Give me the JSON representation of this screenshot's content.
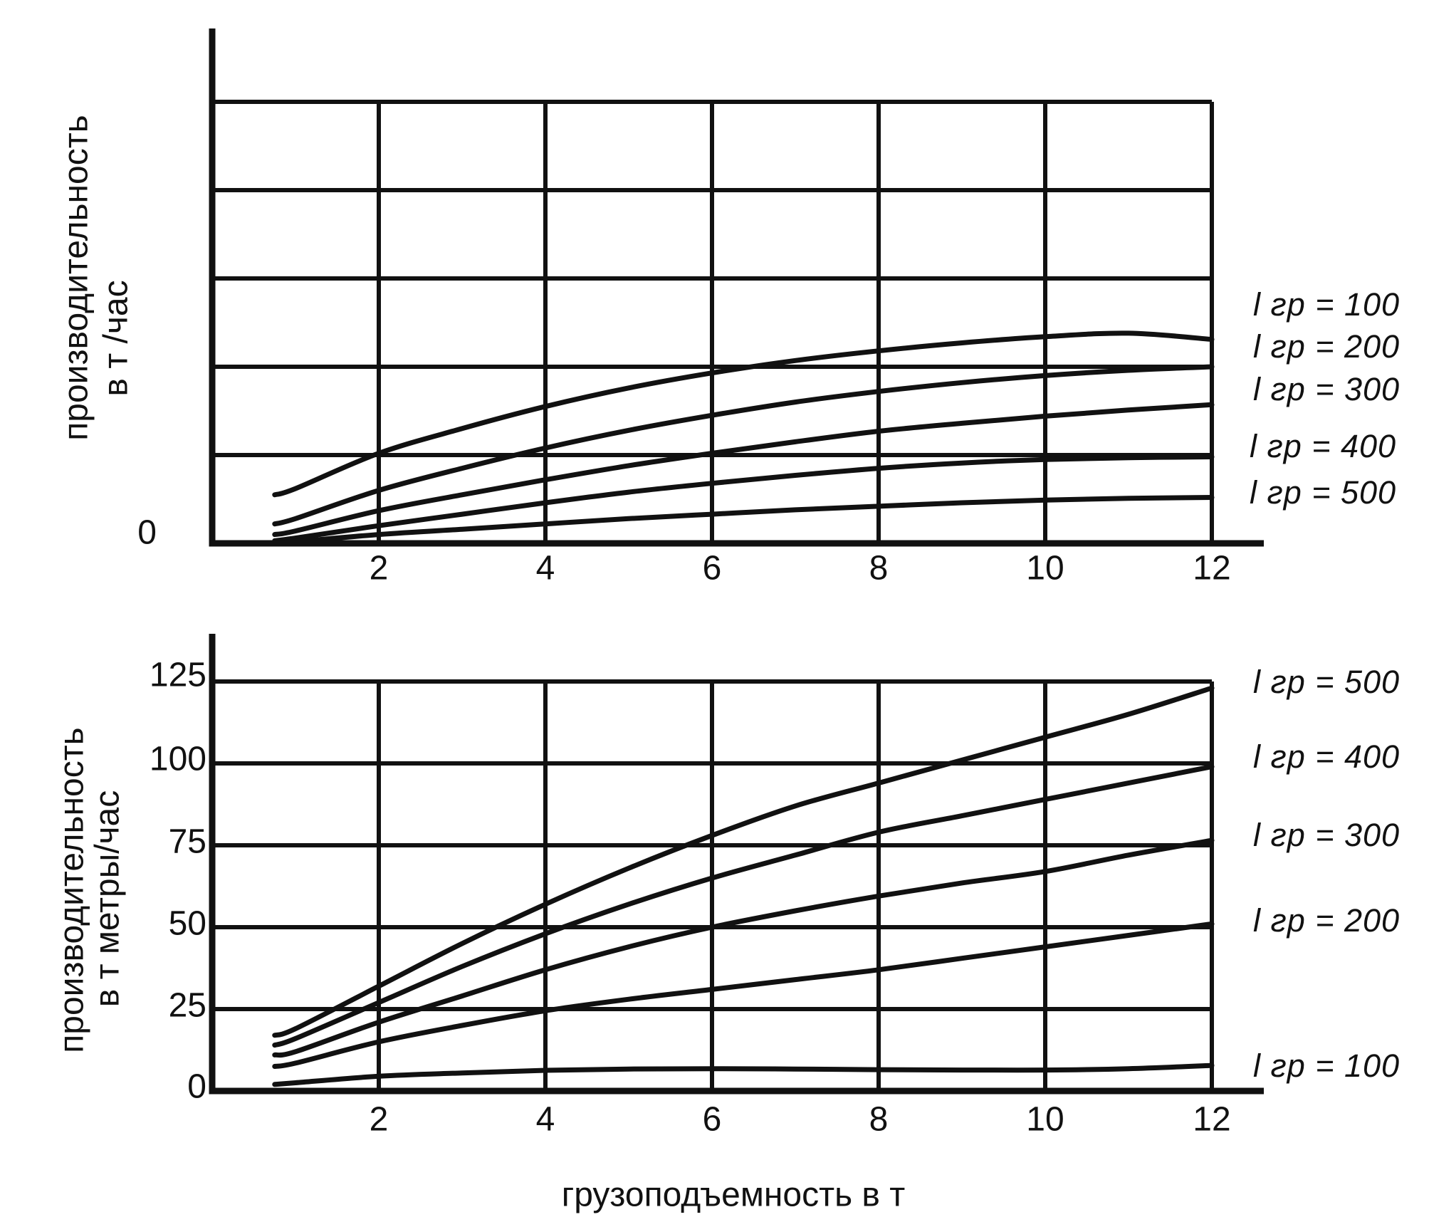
{
  "colors": {
    "ink": "#111111",
    "background": "#ffffff"
  },
  "xaxis_title": "грузоподъемность в т",
  "chart_data": [
    {
      "type": "line",
      "title": "",
      "position": "top",
      "ylabel_line1": "производительность",
      "ylabel_line2": "в т /час",
      "xlabel": "грузоподъемность в т",
      "x_tick_labels": [
        "2",
        "4",
        "6",
        "8",
        "10",
        "12"
      ],
      "y_tick_labels": [
        "0"
      ],
      "xlim": [
        0,
        12
      ],
      "ylim": [
        0,
        5
      ],
      "grid": true,
      "x_gridlines": [
        2,
        4,
        6,
        8,
        10,
        12
      ],
      "y_gridlines": [
        1,
        2,
        3,
        4,
        5
      ],
      "y_units_note": "horizontal gridlines unlabeled; only 0 labeled; values in grid units",
      "legend_position": "right",
      "legend": [
        "l гр = 100",
        "l гр = 200",
        "l гр = 300",
        "l гр = 400",
        "l гр = 500"
      ],
      "x": [
        0.75,
        1,
        2,
        3,
        4,
        5,
        6,
        7,
        8,
        9,
        10,
        11,
        12
      ],
      "series": [
        {
          "name": "l гр = 100",
          "y": [
            0.55,
            0.62,
            1.02,
            1.3,
            1.55,
            1.76,
            1.93,
            2.07,
            2.18,
            2.27,
            2.34,
            2.38,
            2.31
          ]
        },
        {
          "name": "l гр = 200",
          "y": [
            0.22,
            0.28,
            0.6,
            0.85,
            1.08,
            1.28,
            1.45,
            1.6,
            1.72,
            1.82,
            1.9,
            1.96,
            2.0
          ]
        },
        {
          "name": "l гр = 300",
          "y": [
            0.1,
            0.14,
            0.37,
            0.55,
            0.72,
            0.88,
            1.02,
            1.15,
            1.27,
            1.36,
            1.44,
            1.51,
            1.57
          ]
        },
        {
          "name": "l гр = 400",
          "y": [
            0.03,
            0.06,
            0.2,
            0.33,
            0.46,
            0.58,
            0.68,
            0.77,
            0.85,
            0.91,
            0.95,
            0.97,
            0.98
          ]
        },
        {
          "name": "l гр = 500",
          "y": [
            0.01,
            0.02,
            0.1,
            0.16,
            0.22,
            0.28,
            0.33,
            0.38,
            0.42,
            0.46,
            0.49,
            0.51,
            0.52
          ]
        }
      ]
    },
    {
      "type": "line",
      "title": "",
      "position": "bottom",
      "ylabel_line1": "производительность",
      "ylabel_line2": "в т метры/час",
      "xlabel": "грузоподъемность в т",
      "x_tick_labels": [
        "2",
        "4",
        "6",
        "8",
        "10",
        "12"
      ],
      "y_tick_labels": [
        "0",
        "25",
        "50",
        "75",
        "100",
        "125"
      ],
      "xlim": [
        0,
        12
      ],
      "ylim": [
        0,
        125
      ],
      "grid": true,
      "x_gridlines": [
        2,
        4,
        6,
        8,
        10,
        12
      ],
      "y_gridlines": [
        25,
        50,
        75,
        100,
        125
      ],
      "legend_position": "right",
      "legend": [
        "l гр = 500",
        "l гр = 400",
        "l гр = 300",
        "l гр = 200",
        "l гр = 100"
      ],
      "x": [
        0.75,
        1,
        2,
        3,
        4,
        5,
        6,
        7,
        8,
        9,
        10,
        11,
        12
      ],
      "series": [
        {
          "name": "l гр = 500",
          "y": [
            17,
            19,
            32,
            45,
            57,
            68,
            78,
            87,
            94,
            101,
            108,
            115,
            123
          ]
        },
        {
          "name": "l гр = 400",
          "y": [
            14,
            16,
            27,
            38,
            48,
            57,
            65,
            72,
            79,
            84,
            89,
            94,
            99
          ]
        },
        {
          "name": "l гр = 300",
          "y": [
            11,
            12,
            21,
            29,
            37,
            44,
            50,
            55,
            59.5,
            63.5,
            67,
            72,
            76.5
          ]
        },
        {
          "name": "l гр = 200",
          "y": [
            7.5,
            8.5,
            15,
            20,
            24.5,
            28,
            31,
            34,
            37,
            40.5,
            44,
            47.5,
            51
          ]
        },
        {
          "name": "l гр = 100",
          "y": [
            2,
            2.5,
            4.5,
            5.5,
            6.3,
            6.7,
            6.8,
            6.7,
            6.5,
            6.4,
            6.4,
            6.8,
            7.8
          ]
        }
      ]
    }
  ]
}
